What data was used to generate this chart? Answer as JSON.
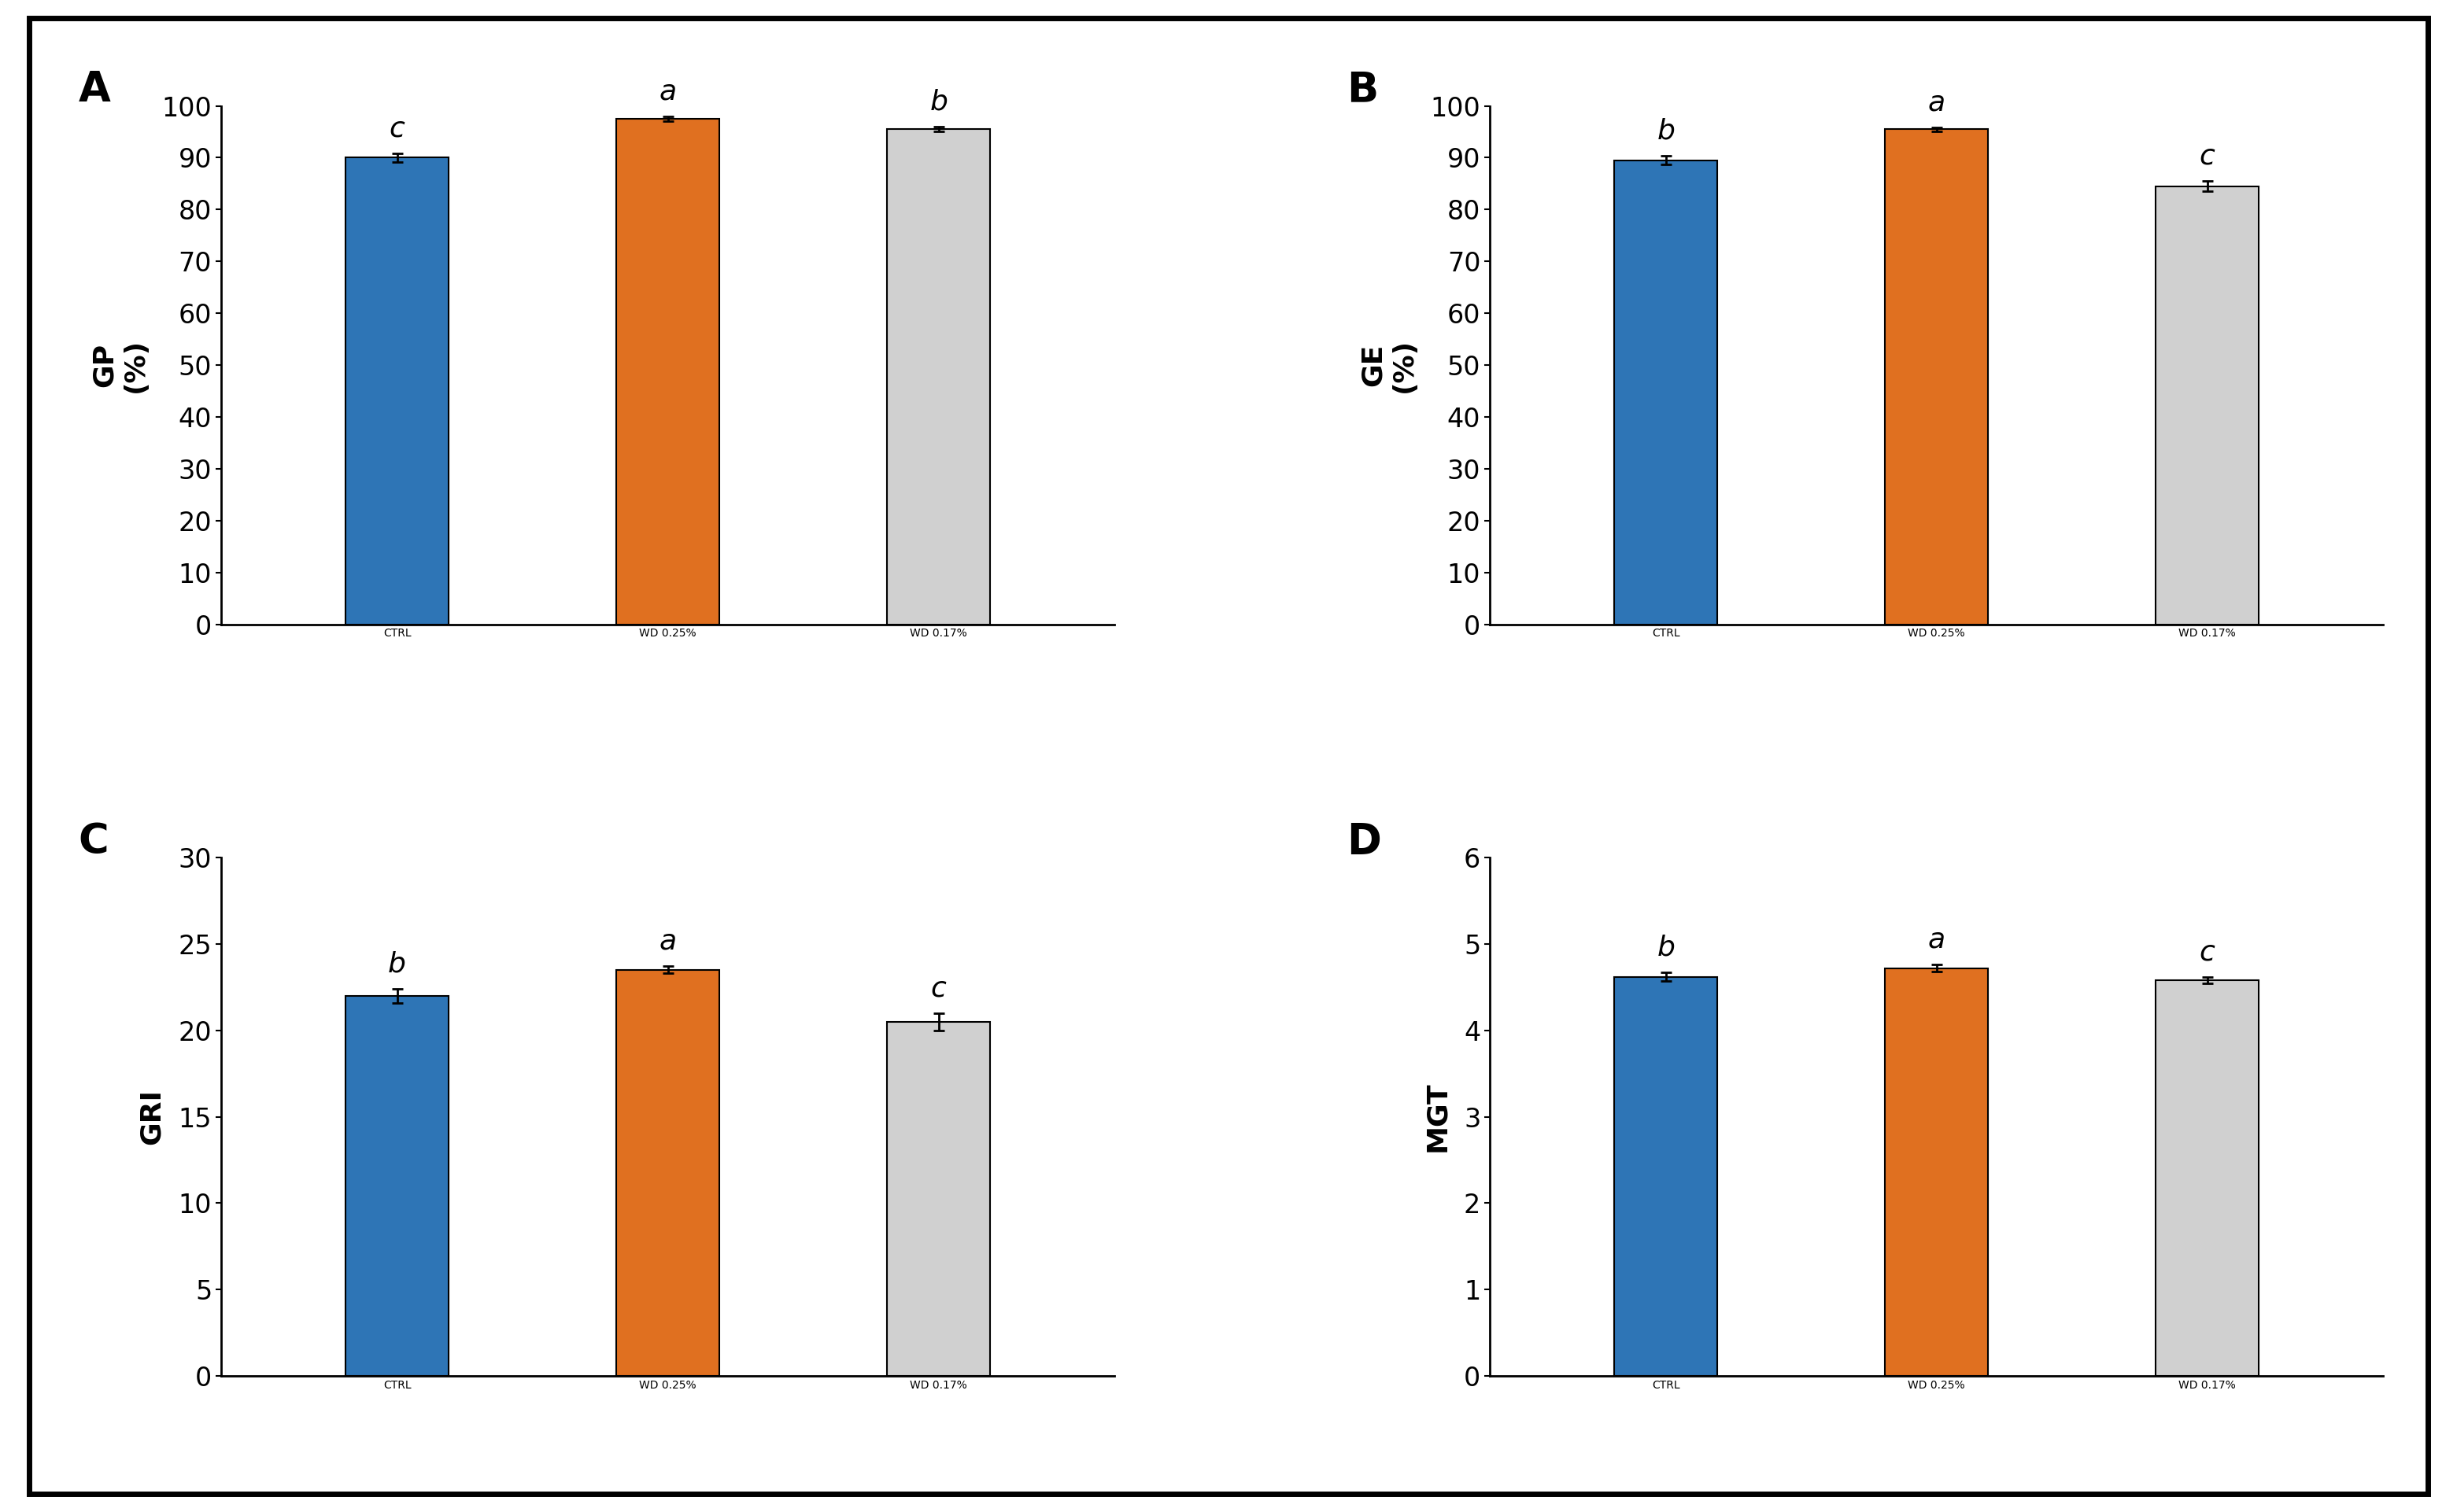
{
  "panels": [
    {
      "label": "A",
      "ylabel": "GP\n(%)",
      "categories": [
        "CTRL",
        "WD 0.25%",
        "WD 0.17%"
      ],
      "values": [
        90.0,
        97.5,
        95.5
      ],
      "errors": [
        0.8,
        0.4,
        0.5
      ],
      "letters": [
        "c",
        "a",
        "b"
      ],
      "ylim": [
        0,
        100
      ],
      "yticks": [
        0,
        10,
        20,
        30,
        40,
        50,
        60,
        70,
        80,
        90,
        100
      ],
      "colors": [
        "#2E75B6",
        "#E07020",
        "#D0D0D0"
      ]
    },
    {
      "label": "B",
      "ylabel": "GE\n(%)",
      "categories": [
        "CTRL",
        "WD 0.25%",
        "WD 0.17%"
      ],
      "values": [
        89.5,
        95.5,
        84.5
      ],
      "errors": [
        0.8,
        0.4,
        1.0
      ],
      "letters": [
        "b",
        "a",
        "c"
      ],
      "ylim": [
        0,
        100
      ],
      "yticks": [
        0,
        10,
        20,
        30,
        40,
        50,
        60,
        70,
        80,
        90,
        100
      ],
      "colors": [
        "#2E75B6",
        "#E07020",
        "#D0D0D0"
      ]
    },
    {
      "label": "C",
      "ylabel": "GRI",
      "categories": [
        "CTRL",
        "WD 0.25%",
        "WD 0.17%"
      ],
      "values": [
        22.0,
        23.5,
        20.5
      ],
      "errors": [
        0.4,
        0.2,
        0.5
      ],
      "letters": [
        "b",
        "a",
        "c"
      ],
      "ylim": [
        0,
        30
      ],
      "yticks": [
        0,
        5,
        10,
        15,
        20,
        25,
        30
      ],
      "colors": [
        "#2E75B6",
        "#E07020",
        "#D0D0D0"
      ]
    },
    {
      "label": "D",
      "ylabel": "MGT",
      "categories": [
        "CTRL",
        "WD 0.25%",
        "WD 0.17%"
      ],
      "values": [
        4.62,
        4.72,
        4.58
      ],
      "errors": [
        0.05,
        0.04,
        0.04
      ],
      "letters": [
        "b",
        "a",
        "c"
      ],
      "ylim": [
        0,
        6
      ],
      "yticks": [
        0,
        1,
        2,
        3,
        4,
        5,
        6
      ],
      "colors": [
        "#2E75B6",
        "#E07020",
        "#D0D0D0"
      ]
    }
  ],
  "background_color": "#FFFFFF",
  "border_color": "#000000",
  "bar_width": 0.38,
  "letter_fontsize": 26,
  "label_fontsize": 26,
  "tick_fontsize": 24,
  "panel_label_fontsize": 38,
  "xlabel_fontsize": 24,
  "bar_edgecolor": "#000000",
  "bar_edgewidth": 1.5,
  "spine_linewidth": 2.0,
  "errorbar_linewidth": 2.0,
  "errorbar_capsize": 5,
  "errorbar_capthick": 2.0
}
